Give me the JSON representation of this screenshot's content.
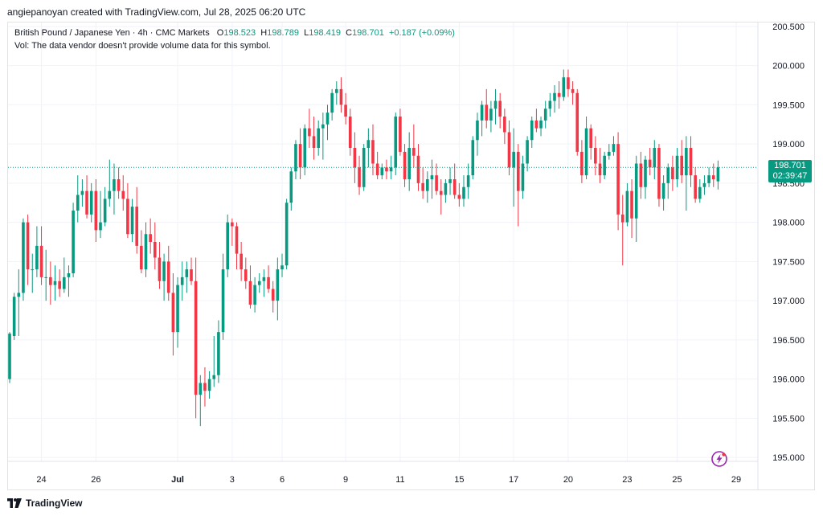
{
  "header": {
    "credit": "angiepanoyan created with TradingView.com, Jul 28, 2025 06:20 UTC"
  },
  "legend": {
    "symbol": "British Pound / Japanese Yen · 4h · CMC Markets",
    "o_label": "O",
    "o": "198.523",
    "h_label": "H",
    "h": "198.789",
    "l_label": "L",
    "l": "198.419",
    "c_label": "C",
    "c": "198.701",
    "change": "+0.187 (+0.09%)",
    "vol": "Vol: The data vendor doesn't provide volume data for this symbol."
  },
  "last_price": {
    "price": "198.701",
    "countdown": "02:39:47"
  },
  "footer": {
    "brand": "TradingView"
  },
  "colors": {
    "up": "#089981",
    "down": "#f23645",
    "grid": "#f0f3fa",
    "axis_text": "#131722",
    "last_line": "#089981",
    "flash": "#9c27b0"
  },
  "icons": [
    "tradingview-logo-icon",
    "flash-icon"
  ],
  "chart_data": {
    "type": "candlestick",
    "title": "British Pound / Japanese Yen · 4h · CMC Markets",
    "timeframe": "4h",
    "ylim": [
      194.95,
      200.55
    ],
    "yticks": [
      "195.000",
      "195.500",
      "196.000",
      "196.500",
      "197.000",
      "197.500",
      "198.000",
      "198.500",
      "199.000",
      "199.500",
      "200.000",
      "200.500"
    ],
    "xticks": [
      {
        "label": "24",
        "index": 7
      },
      {
        "label": "26",
        "index": 19
      },
      {
        "label": "Jul",
        "index": 37
      },
      {
        "label": "3",
        "index": 49
      },
      {
        "label": "6",
        "index": 60
      },
      {
        "label": "9",
        "index": 74
      },
      {
        "label": "11",
        "index": 86
      },
      {
        "label": "15",
        "index": 99
      },
      {
        "label": "17",
        "index": 111
      },
      {
        "label": "20",
        "index": 123
      },
      {
        "label": "23",
        "index": 136
      },
      {
        "label": "25",
        "index": 147
      },
      {
        "label": "29",
        "index": 160
      }
    ],
    "last_price": 198.701,
    "candles": [
      [
        196.0,
        196.6,
        195.95,
        196.58
      ],
      [
        196.55,
        197.1,
        196.5,
        197.05
      ],
      [
        197.05,
        197.4,
        196.55,
        197.1
      ],
      [
        197.1,
        198.05,
        197.0,
        198.0
      ],
      [
        198.0,
        198.1,
        197.2,
        197.4
      ],
      [
        197.4,
        197.6,
        197.1,
        197.4
      ],
      [
        197.4,
        197.95,
        197.3,
        197.7
      ],
      [
        197.7,
        197.95,
        197.2,
        197.3
      ],
      [
        197.3,
        197.65,
        197.0,
        197.3
      ],
      [
        197.3,
        197.5,
        196.95,
        197.2
      ],
      [
        197.2,
        197.45,
        197.0,
        197.25
      ],
      [
        197.25,
        197.4,
        197.05,
        197.15
      ],
      [
        197.15,
        197.55,
        197.1,
        197.3
      ],
      [
        197.3,
        197.45,
        197.05,
        197.35
      ],
      [
        197.35,
        198.25,
        197.3,
        198.15
      ],
      [
        198.15,
        198.6,
        198.0,
        198.35
      ],
      [
        198.35,
        198.55,
        198.2,
        198.4
      ],
      [
        198.4,
        198.6,
        198.05,
        198.1
      ],
      [
        198.1,
        198.5,
        198.0,
        198.4
      ],
      [
        198.4,
        198.55,
        197.75,
        197.9
      ],
      [
        197.9,
        198.4,
        197.8,
        198.0
      ],
      [
        198.0,
        198.45,
        197.95,
        198.3
      ],
      [
        198.3,
        198.8,
        198.2,
        198.4
      ],
      [
        198.4,
        198.75,
        198.1,
        198.55
      ],
      [
        198.55,
        198.7,
        198.3,
        198.4
      ],
      [
        198.4,
        198.6,
        198.15,
        198.3
      ],
      [
        198.3,
        198.5,
        197.8,
        197.85
      ],
      [
        197.85,
        198.3,
        197.75,
        198.2
      ],
      [
        198.2,
        198.45,
        197.6,
        197.7
      ],
      [
        197.7,
        197.9,
        197.35,
        197.4
      ],
      [
        197.4,
        198.0,
        197.3,
        197.85
      ],
      [
        197.85,
        198.05,
        197.6,
        197.75
      ],
      [
        197.75,
        198.0,
        197.4,
        197.55
      ],
      [
        197.55,
        197.75,
        197.15,
        197.25
      ],
      [
        197.25,
        197.6,
        197.0,
        197.5
      ],
      [
        197.5,
        197.7,
        197.0,
        197.1
      ],
      [
        197.1,
        197.35,
        196.3,
        196.6
      ],
      [
        196.6,
        197.3,
        196.4,
        197.2
      ],
      [
        197.2,
        197.5,
        197.0,
        197.3
      ],
      [
        197.3,
        197.5,
        197.1,
        197.4
      ],
      [
        197.4,
        197.55,
        197.2,
        197.25
      ],
      [
        197.25,
        197.55,
        195.5,
        195.8
      ],
      [
        195.8,
        196.05,
        195.4,
        195.95
      ],
      [
        195.95,
        196.15,
        195.65,
        195.85
      ],
      [
        195.85,
        196.1,
        195.75,
        196.0
      ],
      [
        196.0,
        196.55,
        195.9,
        196.05
      ],
      [
        196.05,
        196.75,
        195.95,
        196.6
      ],
      [
        196.6,
        197.6,
        196.5,
        197.4
      ],
      [
        197.4,
        198.1,
        197.3,
        198.0
      ],
      [
        198.0,
        198.05,
        197.7,
        197.95
      ],
      [
        197.95,
        198.0,
        197.4,
        197.6
      ],
      [
        197.6,
        197.75,
        197.25,
        197.4
      ],
      [
        197.4,
        197.55,
        197.15,
        197.25
      ],
      [
        197.25,
        197.45,
        196.9,
        196.95
      ],
      [
        196.95,
        197.3,
        196.85,
        197.2
      ],
      [
        197.2,
        197.35,
        197.1,
        197.25
      ],
      [
        197.25,
        197.4,
        197.05,
        197.3
      ],
      [
        197.3,
        197.45,
        197.1,
        197.15
      ],
      [
        197.15,
        197.25,
        196.85,
        197.0
      ],
      [
        197.0,
        197.55,
        196.75,
        197.4
      ],
      [
        197.4,
        197.6,
        197.3,
        197.45
      ],
      [
        197.45,
        198.3,
        197.4,
        198.25
      ],
      [
        198.25,
        198.7,
        198.15,
        198.65
      ],
      [
        198.65,
        199.05,
        198.55,
        199.0
      ],
      [
        199.0,
        199.2,
        198.55,
        198.7
      ],
      [
        198.7,
        199.25,
        198.6,
        199.2
      ],
      [
        199.2,
        199.45,
        198.95,
        199.1
      ],
      [
        199.1,
        199.35,
        198.8,
        198.95
      ],
      [
        198.95,
        199.3,
        198.85,
        199.2
      ],
      [
        199.2,
        199.4,
        198.8,
        199.25
      ],
      [
        199.25,
        199.5,
        199.05,
        199.4
      ],
      [
        199.4,
        199.7,
        199.3,
        199.65
      ],
      [
        199.65,
        199.8,
        199.5,
        199.7
      ],
      [
        199.7,
        199.85,
        199.4,
        199.5
      ],
      [
        199.5,
        199.65,
        199.25,
        199.35
      ],
      [
        199.35,
        199.45,
        198.85,
        198.95
      ],
      [
        198.95,
        199.15,
        198.5,
        198.7
      ],
      [
        198.7,
        198.85,
        198.35,
        198.45
      ],
      [
        198.45,
        199.0,
        198.4,
        198.95
      ],
      [
        198.95,
        199.2,
        198.7,
        199.05
      ],
      [
        199.05,
        199.25,
        198.6,
        198.75
      ],
      [
        198.75,
        198.9,
        198.55,
        198.6
      ],
      [
        198.6,
        198.75,
        198.55,
        198.7
      ],
      [
        198.7,
        198.8,
        198.55,
        198.65
      ],
      [
        198.65,
        198.85,
        198.55,
        198.7
      ],
      [
        198.7,
        199.4,
        198.6,
        199.35
      ],
      [
        199.35,
        199.45,
        198.85,
        198.9
      ],
      [
        198.9,
        199.0,
        198.45,
        198.55
      ],
      [
        198.55,
        199.15,
        198.4,
        198.95
      ],
      [
        198.95,
        199.25,
        198.7,
        198.85
      ],
      [
        198.85,
        199.0,
        198.4,
        198.5
      ],
      [
        198.5,
        198.7,
        198.3,
        198.4
      ],
      [
        198.4,
        198.65,
        198.25,
        198.55
      ],
      [
        198.55,
        198.8,
        198.3,
        198.6
      ],
      [
        198.6,
        198.75,
        198.35,
        198.4
      ],
      [
        198.4,
        198.55,
        198.1,
        198.35
      ],
      [
        198.35,
        198.55,
        198.25,
        198.5
      ],
      [
        198.5,
        198.7,
        198.35,
        198.55
      ],
      [
        198.55,
        198.75,
        198.3,
        198.35
      ],
      [
        198.35,
        198.5,
        198.2,
        198.3
      ],
      [
        198.3,
        198.6,
        198.2,
        198.45
      ],
      [
        198.45,
        198.75,
        198.3,
        198.6
      ],
      [
        198.6,
        199.1,
        198.55,
        199.05
      ],
      [
        199.05,
        199.4,
        198.85,
        199.3
      ],
      [
        199.3,
        199.55,
        199.1,
        199.5
      ],
      [
        199.5,
        199.7,
        199.2,
        199.3
      ],
      [
        199.3,
        199.55,
        199.15,
        199.45
      ],
      [
        199.45,
        199.7,
        199.25,
        199.55
      ],
      [
        199.55,
        199.65,
        199.2,
        199.35
      ],
      [
        199.35,
        199.45,
        199.0,
        199.15
      ],
      [
        199.15,
        199.3,
        198.6,
        198.7
      ],
      [
        198.7,
        199.2,
        198.2,
        198.9
      ],
      [
        198.9,
        199.0,
        197.95,
        198.4
      ],
      [
        198.4,
        198.85,
        198.3,
        198.75
      ],
      [
        198.75,
        199.1,
        198.65,
        199.05
      ],
      [
        199.05,
        199.35,
        198.95,
        199.3
      ],
      [
        199.3,
        199.45,
        199.15,
        199.2
      ],
      [
        199.2,
        199.35,
        199.1,
        199.3
      ],
      [
        199.3,
        199.55,
        199.2,
        199.45
      ],
      [
        199.45,
        199.65,
        199.35,
        199.55
      ],
      [
        199.55,
        199.75,
        199.4,
        199.65
      ],
      [
        199.65,
        199.8,
        199.45,
        199.6
      ],
      [
        199.6,
        199.95,
        199.55,
        199.85
      ],
      [
        199.85,
        199.95,
        199.6,
        199.7
      ],
      [
        199.7,
        199.8,
        199.5,
        199.65
      ],
      [
        199.65,
        199.7,
        198.85,
        198.9
      ],
      [
        198.9,
        199.05,
        198.5,
        198.6
      ],
      [
        198.6,
        199.35,
        198.55,
        199.2
      ],
      [
        199.2,
        199.25,
        198.8,
        198.95
      ],
      [
        198.95,
        199.1,
        198.6,
        198.75
      ],
      [
        198.75,
        198.95,
        198.5,
        198.6
      ],
      [
        198.6,
        198.9,
        198.55,
        198.85
      ],
      [
        198.85,
        199.0,
        198.8,
        198.9
      ],
      [
        198.9,
        199.1,
        198.85,
        199.0
      ],
      [
        199.0,
        199.15,
        197.9,
        198.1
      ],
      [
        198.1,
        198.35,
        197.45,
        198.0
      ],
      [
        198.0,
        198.5,
        197.95,
        198.4
      ],
      [
        198.4,
        198.55,
        197.8,
        198.05
      ],
      [
        198.05,
        198.85,
        197.75,
        198.75
      ],
      [
        198.75,
        198.9,
        198.3,
        198.45
      ],
      [
        198.45,
        198.85,
        198.3,
        198.8
      ],
      [
        198.8,
        198.95,
        198.6,
        198.7
      ],
      [
        198.7,
        199.05,
        198.55,
        198.95
      ],
      [
        198.95,
        199.0,
        198.2,
        198.3
      ],
      [
        198.3,
        198.6,
        198.15,
        198.5
      ],
      [
        198.5,
        198.75,
        198.3,
        198.7
      ],
      [
        198.7,
        198.85,
        198.4,
        198.55
      ],
      [
        198.55,
        198.95,
        198.45,
        198.85
      ],
      [
        198.85,
        199.05,
        198.5,
        198.6
      ],
      [
        198.6,
        199.1,
        198.15,
        198.95
      ],
      [
        198.95,
        199.1,
        198.45,
        198.6
      ],
      [
        198.6,
        198.7,
        198.25,
        198.3
      ],
      [
        198.3,
        198.55,
        198.25,
        198.45
      ],
      [
        198.45,
        198.6,
        198.35,
        198.5
      ],
      [
        198.5,
        198.7,
        198.45,
        198.6
      ],
      [
        198.6,
        198.75,
        198.45,
        198.55
      ],
      [
        198.523,
        198.789,
        198.419,
        198.701
      ]
    ]
  }
}
